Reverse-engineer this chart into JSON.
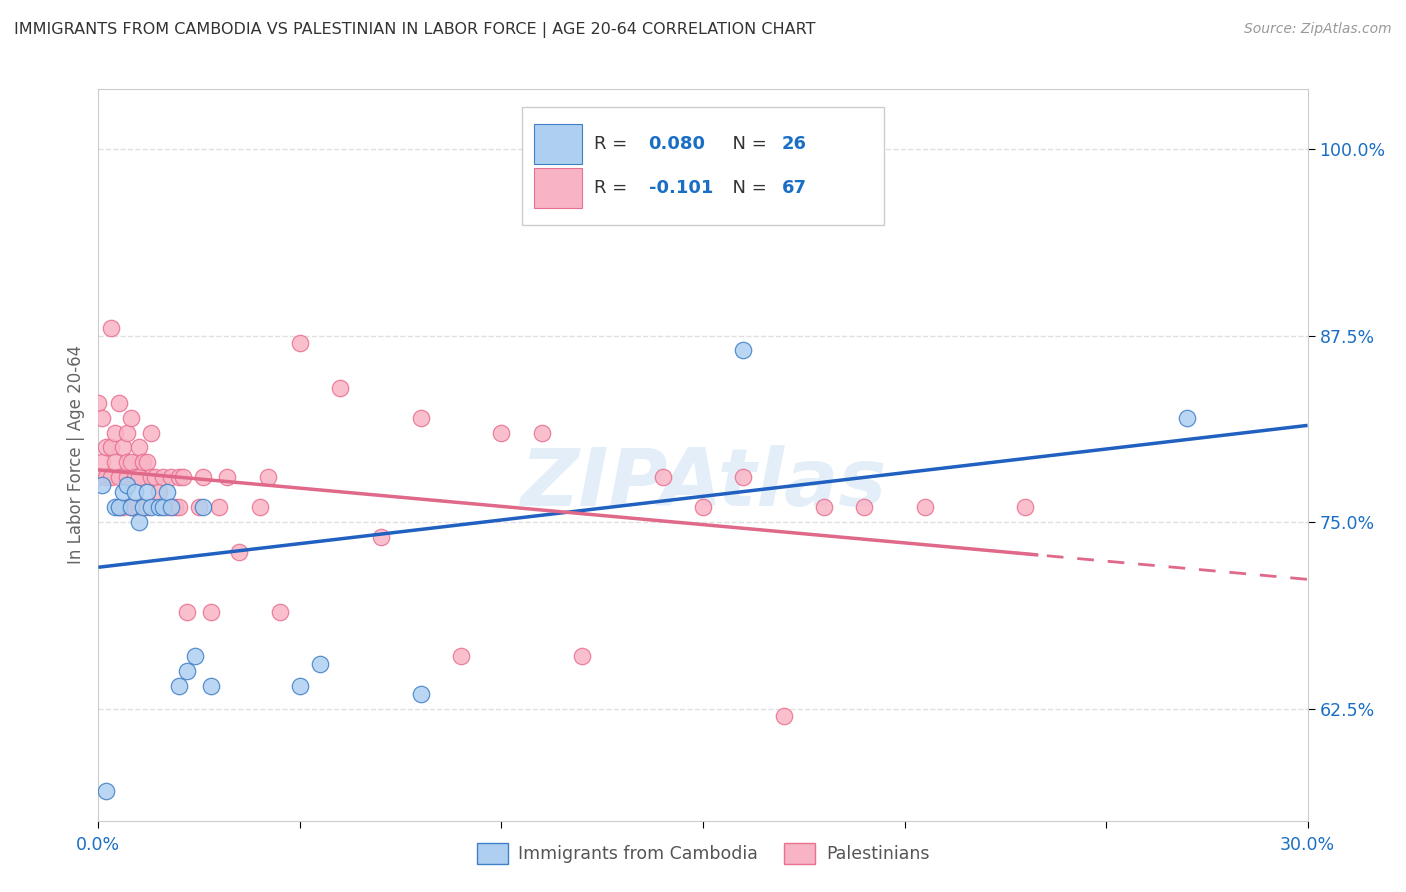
{
  "title": "IMMIGRANTS FROM CAMBODIA VS PALESTINIAN IN LABOR FORCE | AGE 20-64 CORRELATION CHART",
  "source": "Source: ZipAtlas.com",
  "ylabel": "In Labor Force | Age 20-64",
  "xlim": [
    0.0,
    0.3
  ],
  "ylim": [
    0.55,
    1.04
  ],
  "yticks": [
    0.625,
    0.75,
    0.875,
    1.0
  ],
  "ytick_labels": [
    "62.5%",
    "75.0%",
    "87.5%",
    "100.0%"
  ],
  "xtick_vals": [
    0.0,
    0.05,
    0.1,
    0.15,
    0.2,
    0.25,
    0.3
  ],
  "xtick_labels": [
    "0.0%",
    "",
    "",
    "",
    "",
    "",
    "30.0%"
  ],
  "watermark": "ZIPAtlas",
  "cambodia_color": "#aecff0",
  "cambodia_edge_color": "#4080c8",
  "cambodia_line_color": "#2060c0",
  "palestinian_color": "#f8b4c4",
  "palestinian_edge_color": "#e87090",
  "palestinian_line_color": "#e06888",
  "blue_text_color": "#1a6fc4",
  "dark_text_color": "#333333",
  "grid_color": "#e0e0e0",
  "background_color": "#ffffff",
  "cambodia_x": [
    0.001,
    0.002,
    0.004,
    0.005,
    0.006,
    0.007,
    0.008,
    0.009,
    0.01,
    0.011,
    0.012,
    0.013,
    0.015,
    0.016,
    0.017,
    0.018,
    0.02,
    0.022,
    0.024,
    0.026,
    0.028,
    0.05,
    0.055,
    0.08,
    0.16,
    0.27
  ],
  "cambodia_y": [
    0.775,
    0.57,
    0.76,
    0.76,
    0.77,
    0.775,
    0.76,
    0.77,
    0.75,
    0.76,
    0.77,
    0.76,
    0.76,
    0.76,
    0.77,
    0.76,
    0.64,
    0.65,
    0.66,
    0.76,
    0.64,
    0.64,
    0.655,
    0.635,
    0.865,
    0.82
  ],
  "palestinian_x": [
    0.0,
    0.0,
    0.001,
    0.001,
    0.002,
    0.002,
    0.003,
    0.003,
    0.003,
    0.004,
    0.004,
    0.005,
    0.005,
    0.005,
    0.006,
    0.006,
    0.007,
    0.007,
    0.007,
    0.008,
    0.008,
    0.008,
    0.009,
    0.009,
    0.01,
    0.01,
    0.01,
    0.011,
    0.012,
    0.012,
    0.013,
    0.013,
    0.014,
    0.015,
    0.016,
    0.017,
    0.018,
    0.019,
    0.02,
    0.02,
    0.021,
    0.022,
    0.025,
    0.026,
    0.028,
    0.03,
    0.032,
    0.035,
    0.04,
    0.042,
    0.045,
    0.05,
    0.06,
    0.07,
    0.08,
    0.09,
    0.1,
    0.11,
    0.12,
    0.14,
    0.15,
    0.16,
    0.17,
    0.18,
    0.19,
    0.205,
    0.23
  ],
  "palestinian_y": [
    0.78,
    0.83,
    0.79,
    0.82,
    0.8,
    0.78,
    0.78,
    0.8,
    0.88,
    0.79,
    0.81,
    0.76,
    0.78,
    0.83,
    0.8,
    0.76,
    0.78,
    0.79,
    0.81,
    0.76,
    0.79,
    0.82,
    0.78,
    0.76,
    0.76,
    0.78,
    0.8,
    0.79,
    0.76,
    0.79,
    0.78,
    0.81,
    0.78,
    0.77,
    0.78,
    0.76,
    0.78,
    0.76,
    0.76,
    0.78,
    0.78,
    0.69,
    0.76,
    0.78,
    0.69,
    0.76,
    0.78,
    0.73,
    0.76,
    0.78,
    0.69,
    0.87,
    0.84,
    0.74,
    0.82,
    0.66,
    0.81,
    0.81,
    0.66,
    0.78,
    0.76,
    0.78,
    0.62,
    0.76,
    0.76,
    0.76,
    0.76
  ],
  "legend_cambodia_r": "R = 0.080",
  "legend_cambodia_n": "N = 26",
  "legend_palestinian_r": "R = -0.101",
  "legend_palestinian_n": "N = 67",
  "label_cambodia": "Immigrants from Cambodia",
  "label_palestinian": "Palestinians"
}
